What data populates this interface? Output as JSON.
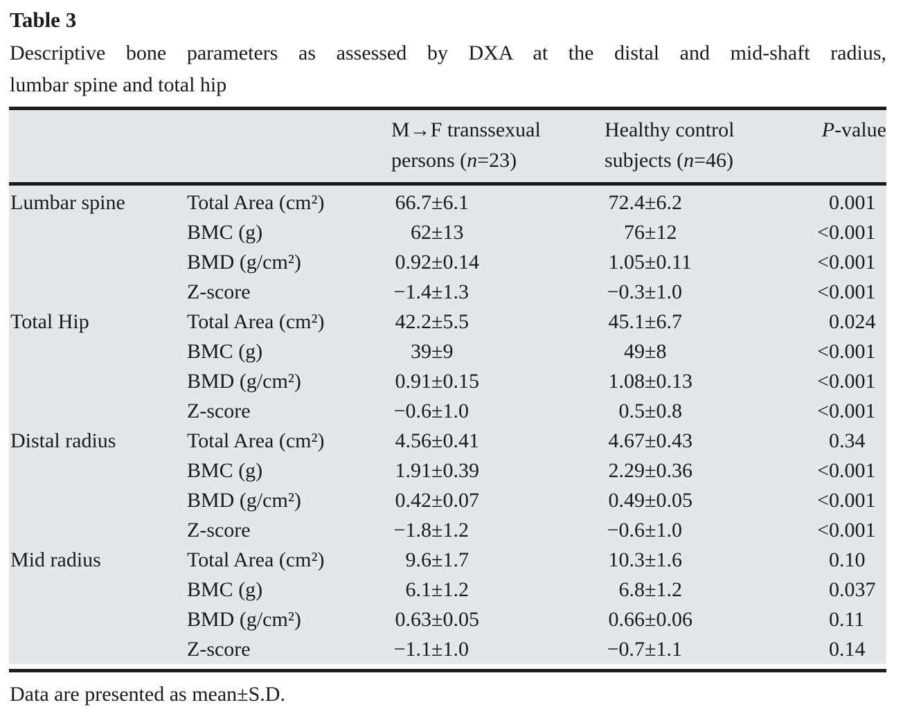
{
  "title": "Table 3",
  "caption_line1": "Descriptive bone parameters as assessed by DXA at the distal and mid-shaft radius,",
  "caption_line2": "lumbar spine and total hip",
  "footnote": "Data are presented as mean±S.D.",
  "pm": "±",
  "colors": {
    "table_bg": "#e5e6e8",
    "rule": "#1b1b1b",
    "text": "#1a1a1a"
  },
  "header": {
    "group_mf": {
      "line1": "M→F transsexual",
      "line2_pre": "persons (",
      "n": "n",
      "line2_post": "=23)"
    },
    "group_hc": {
      "line1": "Healthy control",
      "line2_pre": "subjects (",
      "n": "n",
      "line2_post": "=46)"
    },
    "pvalue": {
      "italic": "P",
      "rest": "-value"
    }
  },
  "rows": [
    {
      "region": "Lumbar spine",
      "param": "Total Area (cm²)",
      "mf_mean": "66.7",
      "mf_sd": "6.1",
      "hc_mean": "72.4",
      "hc_sd": "6.2",
      "p_prefix": "",
      "p": "0.001"
    },
    {
      "region": "",
      "param": "BMC (g)",
      "mf_mean": "62",
      "mf_sd": "13",
      "hc_mean": "76",
      "hc_sd": "12",
      "p_prefix": "<",
      "p": "0.001"
    },
    {
      "region": "",
      "param": "BMD (g/cm²)",
      "mf_mean": "0.92",
      "mf_sd": "0.14",
      "hc_mean": "1.05",
      "hc_sd": "0.11",
      "p_prefix": "<",
      "p": "0.001"
    },
    {
      "region": "",
      "param": "Z-score",
      "mf_mean": "−1.4",
      "mf_sd": "1.3",
      "hc_mean": "−0.3",
      "hc_sd": "1.0",
      "p_prefix": "<",
      "p": "0.001"
    },
    {
      "region": "Total Hip",
      "param": "Total Area (cm²)",
      "mf_mean": "42.2",
      "mf_sd": "5.5",
      "hc_mean": "45.1",
      "hc_sd": "6.7",
      "p_prefix": "",
      "p": "0.024"
    },
    {
      "region": "",
      "param": "BMC (g)",
      "mf_mean": "39",
      "mf_sd": "9",
      "hc_mean": "49",
      "hc_sd": "8",
      "p_prefix": "<",
      "p": "0.001"
    },
    {
      "region": "",
      "param": "BMD (g/cm²)",
      "mf_mean": "0.91",
      "mf_sd": "0.15",
      "hc_mean": "1.08",
      "hc_sd": "0.13",
      "p_prefix": "<",
      "p": "0.001"
    },
    {
      "region": "",
      "param": "Z-score",
      "mf_mean": "−0.6",
      "mf_sd": "1.0",
      "hc_mean": "0.5",
      "hc_sd": "0.8",
      "p_prefix": "<",
      "p": "0.001"
    },
    {
      "region": "Distal radius",
      "param": "Total Area (cm²)",
      "mf_mean": "4.56",
      "mf_sd": "0.41",
      "hc_mean": "4.67",
      "hc_sd": "0.43",
      "p_prefix": "",
      "p": "0.34"
    },
    {
      "region": "",
      "param": "BMC (g)",
      "mf_mean": "1.91",
      "mf_sd": "0.39",
      "hc_mean": "2.29",
      "hc_sd": "0.36",
      "p_prefix": "<",
      "p": "0.001"
    },
    {
      "region": "",
      "param": "BMD (g/cm²)",
      "mf_mean": "0.42",
      "mf_sd": "0.07",
      "hc_mean": "0.49",
      "hc_sd": "0.05",
      "p_prefix": "<",
      "p": "0.001"
    },
    {
      "region": "",
      "param": "Z-score",
      "mf_mean": "−1.8",
      "mf_sd": "1.2",
      "hc_mean": "−0.6",
      "hc_sd": "1.0",
      "p_prefix": "<",
      "p": "0.001"
    },
    {
      "region": "Mid radius",
      "param": "Total Area (cm²)",
      "mf_mean": "9.6",
      "mf_sd": "1.7",
      "hc_mean": "10.3",
      "hc_sd": "1.6",
      "p_prefix": "",
      "p": "0.10"
    },
    {
      "region": "",
      "param": "BMC (g)",
      "mf_mean": "6.1",
      "mf_sd": "1.2",
      "hc_mean": "6.8",
      "hc_sd": "1.2",
      "p_prefix": "",
      "p": "0.037"
    },
    {
      "region": "",
      "param": "BMD (g/cm²)",
      "mf_mean": "0.63",
      "mf_sd": "0.05",
      "hc_mean": "0.66",
      "hc_sd": "0.06",
      "p_prefix": "",
      "p": "0.11"
    },
    {
      "region": "",
      "param": "Z-score",
      "mf_mean": "−1.1",
      "mf_sd": "1.0",
      "hc_mean": "−0.7",
      "hc_sd": "1.1",
      "p_prefix": "",
      "p": "0.14"
    }
  ]
}
